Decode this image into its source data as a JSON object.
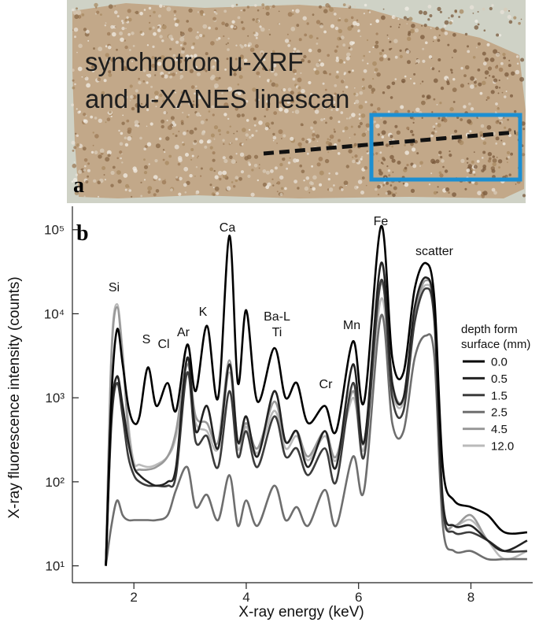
{
  "photo": {
    "caption_lines": [
      "synchrotron μ-XRF",
      "and μ-XANES linescan"
    ],
    "panel_label": "a"
  },
  "chart_data": {
    "type": "line",
    "panel_label": "b",
    "x_label": "X-ray energy (keV)",
    "y_label": "X-ray fluorescence intensity (counts)",
    "log_y": true,
    "xlim": [
      0.905,
      9.1
    ],
    "xticks": [
      2,
      4,
      6,
      8
    ],
    "ylim": [
      6.3,
      190000
    ],
    "yticks": [
      {
        "value": 10,
        "label": "10¹"
      },
      {
        "value": 100,
        "label": "10²"
      },
      {
        "value": 1000,
        "label": "10³"
      },
      {
        "value": 10000,
        "label": "10⁴"
      },
      {
        "value": 100000,
        "label": "10⁵"
      }
    ],
    "annotations": [
      "Si",
      "S",
      "Cl",
      "Ar",
      "K",
      "Ca",
      "Ba-L",
      "Ti",
      "Cr",
      "Mn",
      "Fe",
      "scatter"
    ],
    "legend_title": [
      "depth form",
      "surface (mm)"
    ],
    "x": [
      1.5,
      1.6,
      1.7,
      1.8,
      1.9,
      2.0,
      2.1,
      2.25,
      2.4,
      2.6,
      2.75,
      2.95,
      3.1,
      3.3,
      3.5,
      3.7,
      3.85,
      4.0,
      4.2,
      4.5,
      4.7,
      4.9,
      5.1,
      5.4,
      5.6,
      5.9,
      6.1,
      6.4,
      6.6,
      6.8,
      7.0,
      7.2,
      7.35,
      7.5,
      7.7,
      8.0,
      8.3,
      8.6,
      9.0
    ],
    "series": [
      {
        "name": "0.0",
        "color": "#000000",
        "values": [
          10,
          1000,
          6500,
          2500,
          800,
          500,
          600,
          2300,
          800,
          1500,
          700,
          4300,
          1200,
          7200,
          1000,
          85000,
          1500,
          11000,
          900,
          3900,
          1000,
          1500,
          500,
          800,
          400,
          4700,
          900,
          110000,
          3000,
          2000,
          20000,
          40000,
          15000,
          150,
          60,
          50,
          40,
          25,
          25
        ]
      },
      {
        "name": "0.5",
        "color": "#222222",
        "values": [
          10,
          600,
          1800,
          800,
          300,
          150,
          120,
          100,
          90,
          100,
          150,
          3000,
          400,
          800,
          250,
          2500,
          300,
          600,
          200,
          1200,
          300,
          400,
          150,
          400,
          150,
          2500,
          300,
          40000,
          1500,
          1000,
          12000,
          27000,
          10000,
          60,
          30,
          30,
          20,
          15,
          20
        ]
      },
      {
        "name": "1.5",
        "color": "#3c3c3c",
        "values": [
          10,
          500,
          1500,
          600,
          200,
          120,
          100,
          90,
          90,
          90,
          120,
          2000,
          300,
          350,
          150,
          1200,
          200,
          400,
          150,
          600,
          200,
          250,
          120,
          250,
          100,
          1500,
          200,
          25000,
          1000,
          700,
          8000,
          20000,
          8000,
          50,
          25,
          25,
          20,
          15,
          15
        ]
      },
      {
        "name": "2.5",
        "color": "#6e6e6e",
        "values": [
          10,
          30,
          60,
          40,
          35,
          35,
          35,
          35,
          35,
          40,
          80,
          150,
          50,
          70,
          35,
          120,
          30,
          60,
          30,
          90,
          35,
          50,
          30,
          80,
          30,
          200,
          80,
          9500,
          500,
          400,
          3000,
          5500,
          3000,
          30,
          15,
          15,
          12,
          12,
          12
        ]
      },
      {
        "name": "4.5",
        "color": "#999999",
        "values": [
          10,
          3000,
          12000,
          3000,
          400,
          150,
          140,
          140,
          150,
          200,
          400,
          2500,
          600,
          500,
          300,
          2800,
          300,
          500,
          250,
          900,
          300,
          400,
          200,
          400,
          200,
          1200,
          300,
          23000,
          1500,
          1000,
          10000,
          25000,
          10000,
          50,
          30,
          40,
          20,
          15,
          20
        ]
      },
      {
        "name": "12.0",
        "color": "#bababa",
        "values": [
          10,
          3500,
          13000,
          3500,
          500,
          170,
          160,
          150,
          160,
          200,
          350,
          2000,
          500,
          400,
          250,
          2000,
          250,
          450,
          220,
          700,
          250,
          350,
          180,
          350,
          180,
          1000,
          250,
          15000,
          1200,
          900,
          9000,
          22000,
          9000,
          45,
          30,
          35,
          20,
          12,
          15
        ]
      }
    ]
  }
}
